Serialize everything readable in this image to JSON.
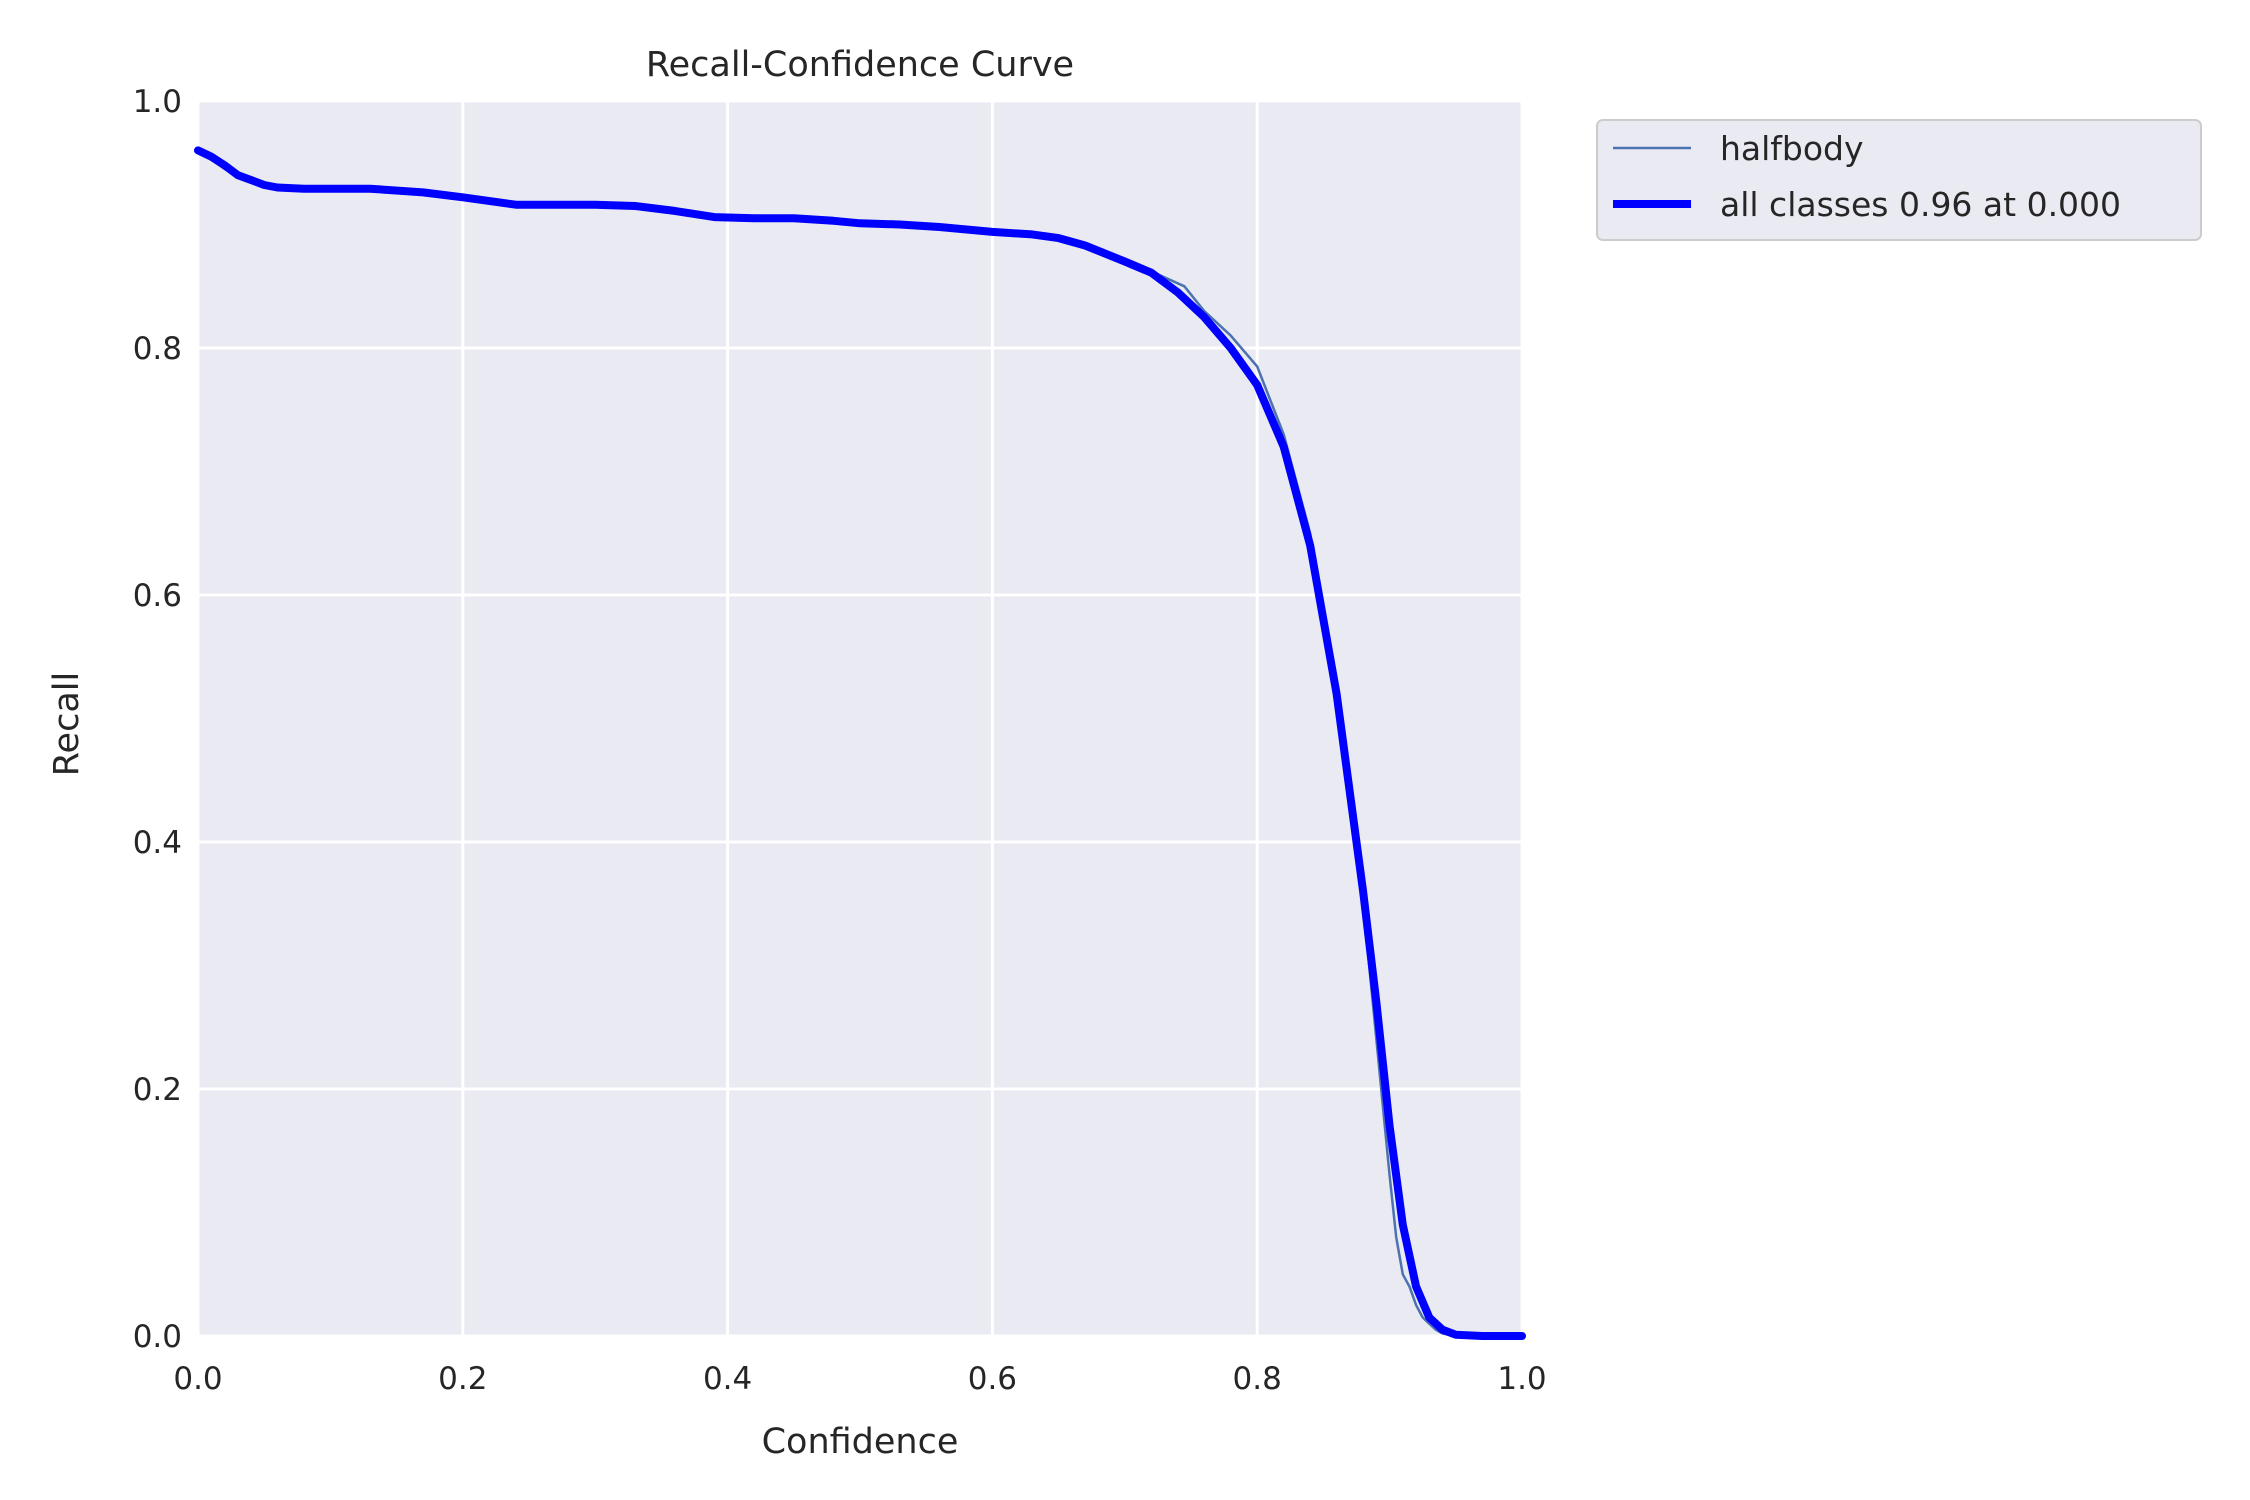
{
  "chart_data": {
    "type": "line",
    "title": "Recall-Confidence Curve",
    "xlabel": "Confidence",
    "ylabel": "Recall",
    "xlim": [
      0,
      1
    ],
    "ylim": [
      0,
      1
    ],
    "xticks": [
      "0.0",
      "0.2",
      "0.4",
      "0.6",
      "0.8",
      "1.0"
    ],
    "yticks": [
      "0.0",
      "0.2",
      "0.4",
      "0.6",
      "0.8",
      "1.0"
    ],
    "grid": true,
    "legend_position": "outside-top-right",
    "series": [
      {
        "name": "halfbody",
        "color": "#4c72b0",
        "style": "thin",
        "x": [
          0.0,
          0.02,
          0.04,
          0.06,
          0.08,
          0.1,
          0.13,
          0.17,
          0.2,
          0.24,
          0.3,
          0.33,
          0.36,
          0.39,
          0.42,
          0.45,
          0.48,
          0.5,
          0.53,
          0.56,
          0.6,
          0.63,
          0.65,
          0.67,
          0.7,
          0.72,
          0.745,
          0.76,
          0.78,
          0.8,
          0.82,
          0.84,
          0.86,
          0.88,
          0.89,
          0.9,
          0.905,
          0.91,
          0.915,
          0.92,
          0.925,
          0.93,
          0.935,
          0.94,
          0.95,
          1.0
        ],
        "y": [
          0.96,
          0.945,
          0.935,
          0.93,
          0.93,
          0.93,
          0.93,
          0.927,
          0.922,
          0.916,
          0.916,
          0.914,
          0.91,
          0.905,
          0.905,
          0.904,
          0.902,
          0.9,
          0.899,
          0.897,
          0.893,
          0.891,
          0.888,
          0.882,
          0.87,
          0.862,
          0.85,
          0.83,
          0.81,
          0.785,
          0.73,
          0.65,
          0.53,
          0.35,
          0.24,
          0.13,
          0.08,
          0.05,
          0.04,
          0.025,
          0.015,
          0.01,
          0.005,
          0.002,
          0.0,
          0.0
        ]
      },
      {
        "name": "all classes 0.96 at 0.000",
        "color": "#0000ff",
        "style": "thick",
        "x": [
          0.0,
          0.01,
          0.02,
          0.03,
          0.04,
          0.05,
          0.06,
          0.08,
          0.1,
          0.13,
          0.17,
          0.2,
          0.24,
          0.3,
          0.33,
          0.36,
          0.39,
          0.42,
          0.45,
          0.48,
          0.5,
          0.53,
          0.56,
          0.6,
          0.63,
          0.65,
          0.67,
          0.7,
          0.72,
          0.74,
          0.76,
          0.78,
          0.8,
          0.82,
          0.84,
          0.86,
          0.88,
          0.89,
          0.9,
          0.91,
          0.92,
          0.93,
          0.94,
          0.95,
          0.97,
          1.0
        ],
        "y": [
          0.96,
          0.955,
          0.948,
          0.94,
          0.936,
          0.932,
          0.93,
          0.929,
          0.929,
          0.929,
          0.926,
          0.922,
          0.916,
          0.916,
          0.915,
          0.911,
          0.906,
          0.905,
          0.905,
          0.903,
          0.901,
          0.9,
          0.898,
          0.894,
          0.892,
          0.889,
          0.883,
          0.87,
          0.861,
          0.845,
          0.825,
          0.8,
          0.77,
          0.72,
          0.64,
          0.52,
          0.36,
          0.27,
          0.17,
          0.09,
          0.04,
          0.015,
          0.005,
          0.001,
          0.0,
          0.0
        ]
      }
    ]
  }
}
